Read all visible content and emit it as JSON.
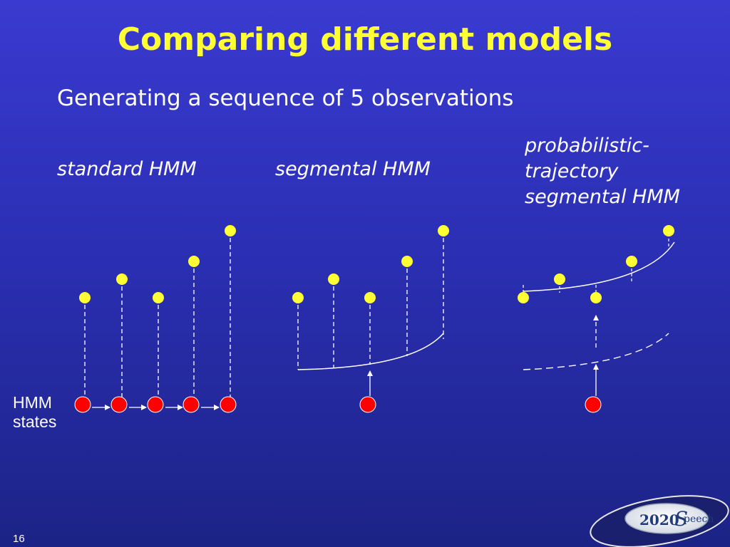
{
  "slide": {
    "title": "Comparing different models",
    "subtitle": "Generating a sequence of 5 observations",
    "page_number": "16"
  },
  "columns": [
    {
      "label": "standard HMM"
    },
    {
      "label": "segmental HMM"
    },
    {
      "label": "probabilistic-\ntrajectory\nsegmental HMM"
    }
  ],
  "states_label": "HMM\nstates",
  "logo": {
    "text_number": "2020",
    "text_letter": "S",
    "text_rest": "peech"
  },
  "colors": {
    "title": "#ffff33",
    "observation_dot": "#ffff33",
    "state_dot": "#ff0000",
    "lines": "#ffffff"
  }
}
